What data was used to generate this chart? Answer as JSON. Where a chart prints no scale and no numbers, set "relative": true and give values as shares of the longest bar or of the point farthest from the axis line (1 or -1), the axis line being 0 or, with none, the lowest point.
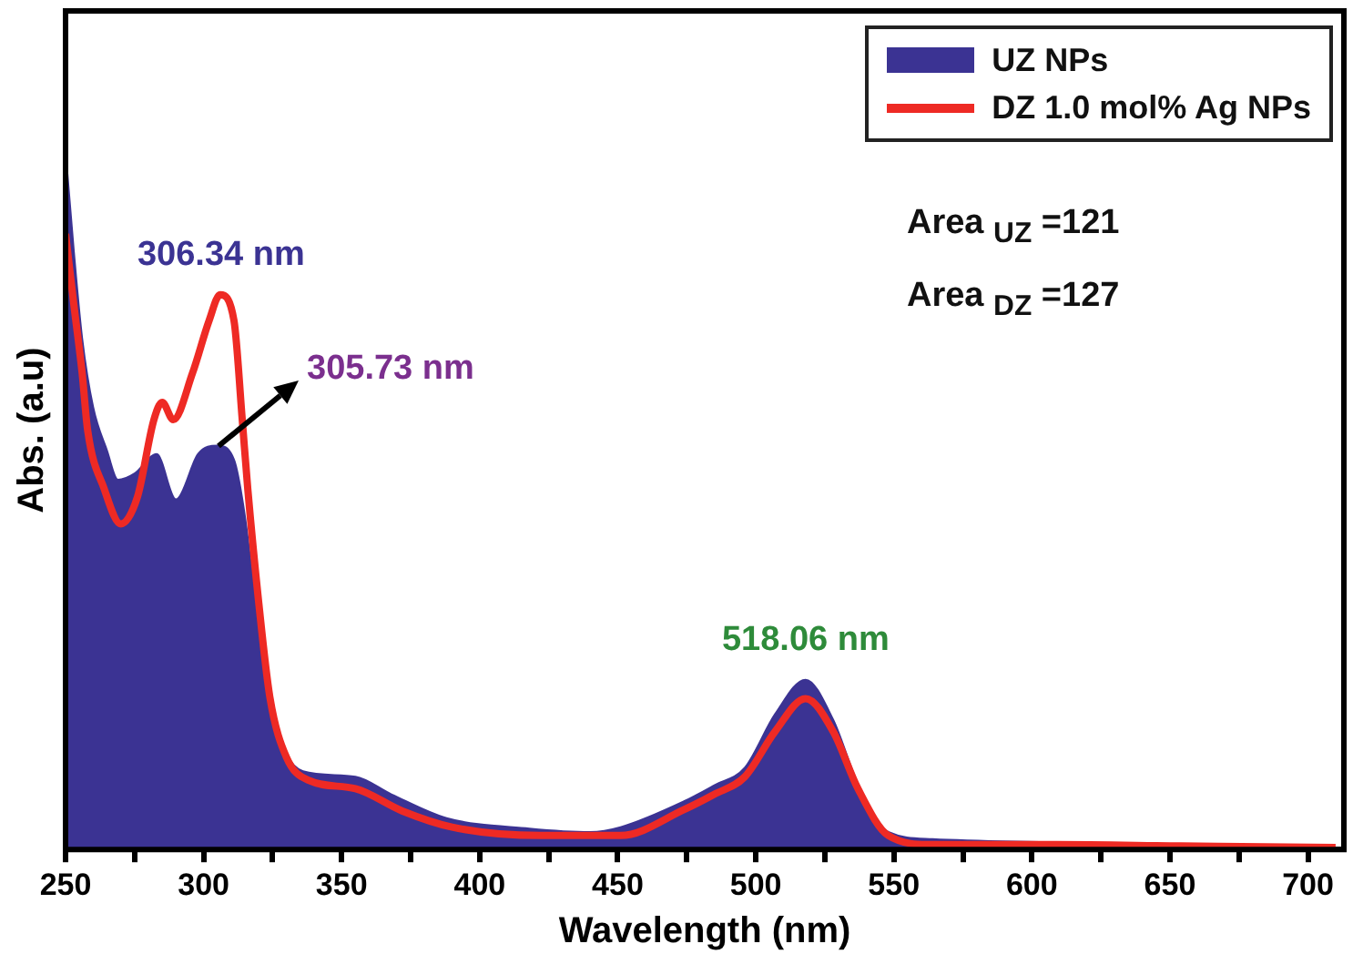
{
  "chart_data": {
    "type": "area",
    "relative": true,
    "xlabel": "Wavelength (nm)",
    "ylabel": "Abs. (a.u)",
    "xlim": [
      250,
      713
    ],
    "xticks": [
      250,
      {
        "value": 275,
        "label": null
      },
      300,
      {
        "value": 325,
        "label": null
      },
      350,
      {
        "value": 375,
        "label": null
      },
      400,
      {
        "value": 425,
        "label": null
      },
      450,
      {
        "value": 475,
        "label": null
      },
      500,
      {
        "value": 525,
        "label": null
      },
      550,
      {
        "value": 575,
        "label": null
      },
      600,
      {
        "value": 625,
        "label": null
      },
      650,
      {
        "value": 675,
        "label": null
      },
      700
    ],
    "grid": false,
    "legend": "top right",
    "series": [
      {
        "name": "UZ NPs",
        "color": "#3b3393",
        "x": [
          250,
          253,
          256,
          260,
          265,
          269,
          275,
          283,
          290,
          298,
          305,
          311,
          315,
          320,
          324,
          330,
          336,
          355,
          368,
          388,
          418,
          440,
          451,
          474,
          485,
          496,
          507,
          518,
          528,
          537,
          548,
          564,
          609,
          654,
          710
        ],
        "values": [
          1.0,
          0.856,
          0.732,
          0.633,
          0.571,
          0.529,
          0.538,
          0.566,
          0.501,
          0.566,
          0.578,
          0.558,
          0.476,
          0.31,
          0.203,
          0.136,
          0.112,
          0.104,
          0.079,
          0.045,
          0.03,
          0.025,
          0.032,
          0.069,
          0.092,
          0.117,
          0.194,
          0.243,
          0.186,
          0.094,
          0.025,
          0.015,
          0.01,
          0.005,
          0.003
        ]
      },
      {
        "name": "DZ 1.0 mol% Ag NPs",
        "type": "line",
        "color": "#ee2a24",
        "x": [
          250,
          253,
          256,
          258,
          264,
          270,
          276,
          282,
          285,
          289,
          296,
          302,
          306,
          311,
          314,
          316,
          320,
          324,
          330,
          338,
          355,
          372,
          390,
          422,
          451,
          474,
          485,
          496,
          507,
          518,
          528,
          537,
          548,
          564,
          609,
          654,
          710
        ],
        "values": [
          0.881,
          0.78,
          0.682,
          0.6,
          0.516,
          0.466,
          0.504,
          0.615,
          0.64,
          0.615,
          0.682,
          0.757,
          0.794,
          0.757,
          0.615,
          0.516,
          0.352,
          0.218,
          0.132,
          0.099,
          0.087,
          0.055,
          0.032,
          0.02,
          0.02,
          0.057,
          0.079,
          0.104,
          0.169,
          0.216,
          0.169,
          0.087,
          0.02,
          0.007,
          0.007,
          0.005,
          0.003
        ]
      }
    ],
    "annotations": [
      {
        "text": "306.34 nm",
        "x": 306.34,
        "y": 0.794
      },
      {
        "text": "305.73 nm",
        "x": 305.73,
        "y": 0.578
      },
      {
        "text": "518.06 nm",
        "x": 518.06,
        "y": 0.243
      },
      "Area $_{UZ}$ =121",
      "Area $_{DZ}$ =127"
    ]
  }
}
